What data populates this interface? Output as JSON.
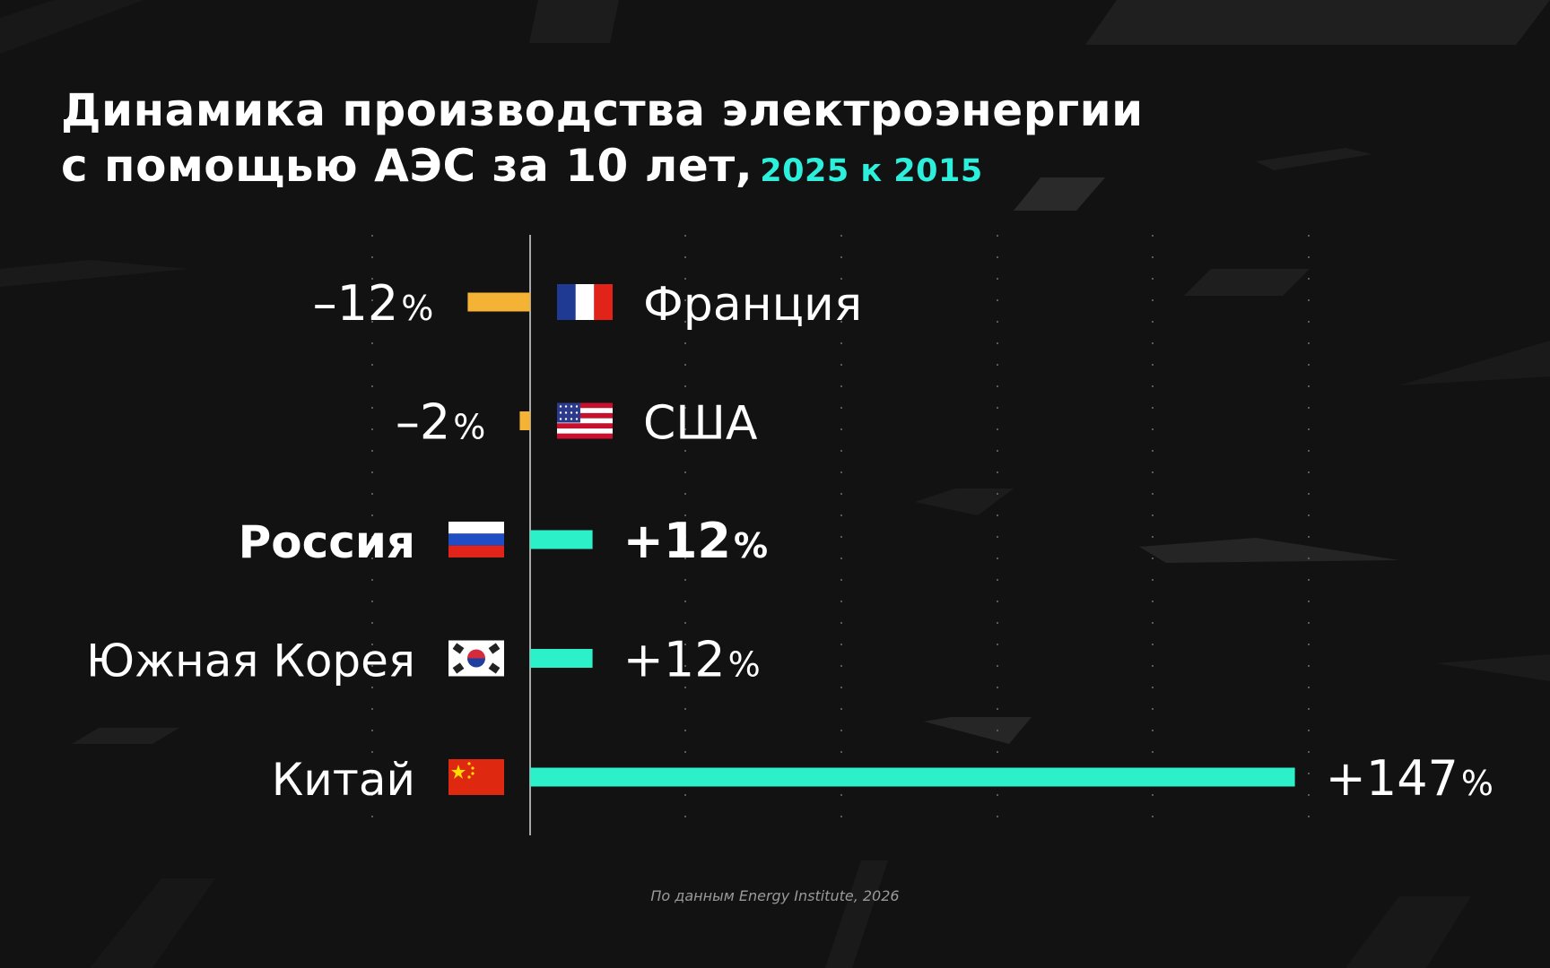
{
  "header": {
    "title_line1": "Динамика производства электроэнергии",
    "title_line2": "с помощью АЭС за 10 лет,",
    "subtitle": "2025 к 2015"
  },
  "source": "По данным Energy Institute, 2026",
  "colors": {
    "background": "#121212",
    "positive": "#2cf0c8",
    "negative": "#f5b335",
    "subtitle": "#2cf0dc",
    "text": "#ffffff"
  },
  "chart_data": {
    "type": "bar",
    "orientation": "horizontal",
    "title": "Динамика производства электроэнергии с помощью АЭС за 10 лет, 2025 к 2015",
    "categories": [
      "Франция",
      "США",
      "Россия",
      "Южная Корея",
      "Китай"
    ],
    "values": [
      -12,
      -2,
      12,
      12,
      147
    ],
    "value_labels": [
      "–12",
      "–2",
      "+12",
      "+12",
      "+147"
    ],
    "unit": "%",
    "flags": [
      "flag-france-icon",
      "flag-usa-icon",
      "flag-russia-icon",
      "flag-south-korea-icon",
      "flag-china-icon"
    ],
    "highlight": [
      "Россия"
    ],
    "grid": true
  }
}
